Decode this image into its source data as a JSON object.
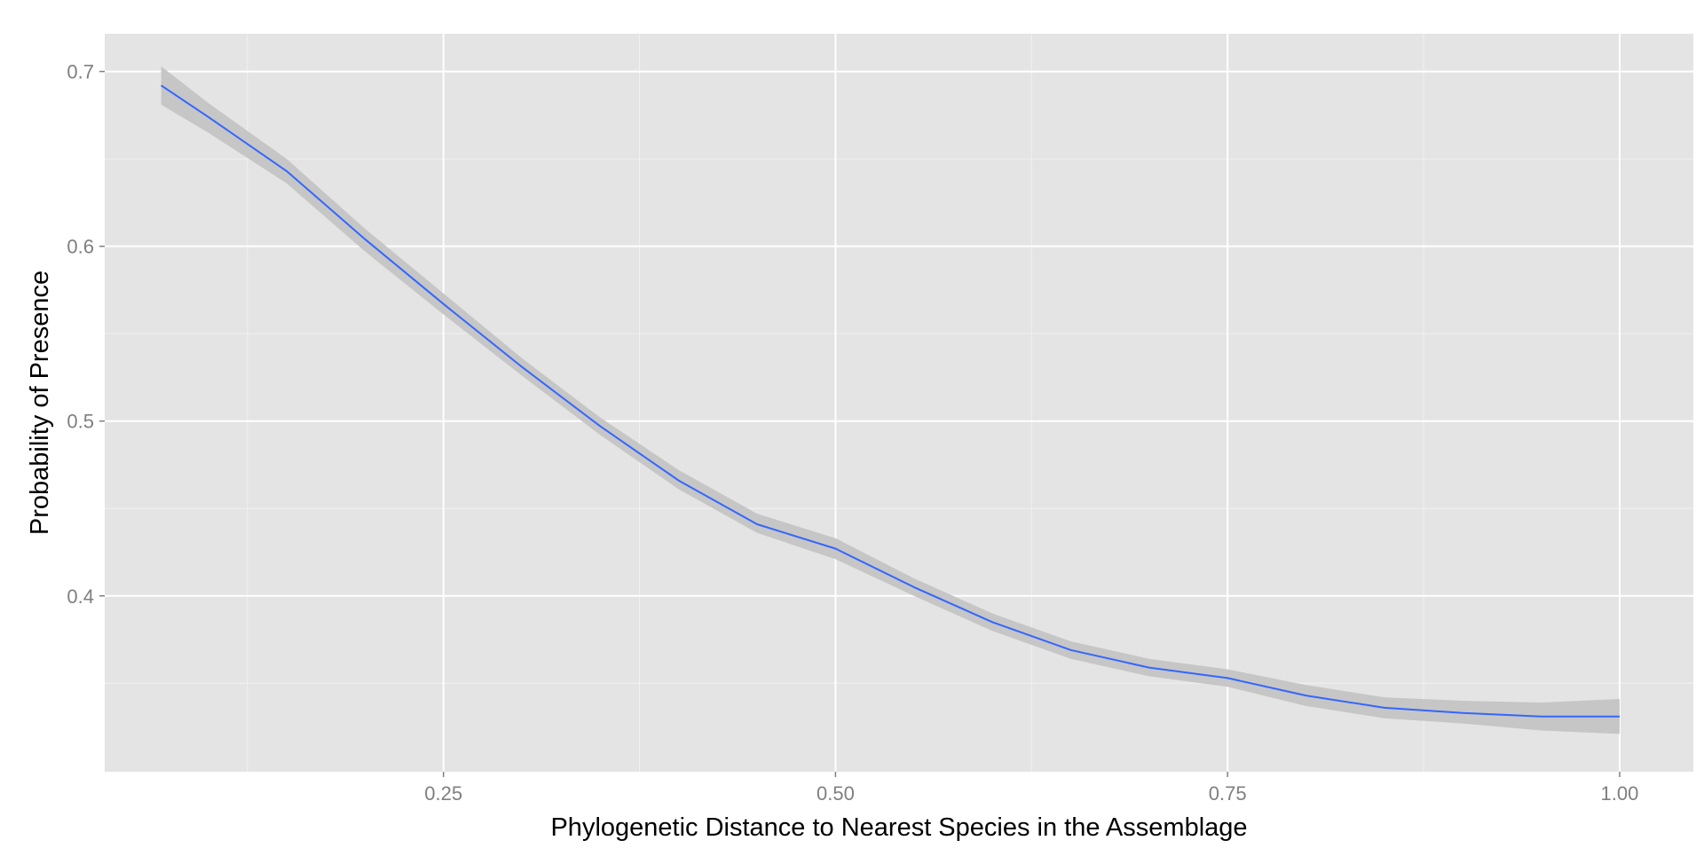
{
  "chart_data": {
    "type": "line",
    "title": "",
    "xlabel": "Phylogenetic Distance to Nearest Species in the Assemblage",
    "ylabel": "Probability of Presence",
    "xlim": [
      0.034,
      1.047
    ],
    "ylim": [
      0.2994,
      0.7216
    ],
    "x_ticks": [
      0.25,
      0.5,
      0.75,
      1.0
    ],
    "x_tick_labels": [
      "0.25",
      "0.50",
      "0.75",
      "1.00"
    ],
    "y_ticks": [
      0.4,
      0.5,
      0.6,
      0.7
    ],
    "y_tick_labels": [
      "0.4",
      "0.5",
      "0.6",
      "0.7"
    ],
    "grid": true,
    "panel_background": "#e4e4e4",
    "grid_color": "#ffffff",
    "series": [
      {
        "line_color": "#3366ff",
        "band_color": "#c6c6c6",
        "x": [
          0.07,
          0.1,
          0.15,
          0.2,
          0.25,
          0.3,
          0.35,
          0.4,
          0.45,
          0.5,
          0.55,
          0.6,
          0.65,
          0.7,
          0.75,
          0.8,
          0.85,
          0.9,
          0.95,
          1.0
        ],
        "y": [
          0.692,
          0.674,
          0.643,
          0.604,
          0.567,
          0.531,
          0.497,
          0.466,
          0.441,
          0.427,
          0.405,
          0.385,
          0.369,
          0.359,
          0.353,
          0.343,
          0.336,
          0.333,
          0.331,
          0.331
        ],
        "upper": [
          0.703,
          0.682,
          0.65,
          0.61,
          0.573,
          0.536,
          0.502,
          0.472,
          0.447,
          0.433,
          0.41,
          0.39,
          0.374,
          0.364,
          0.358,
          0.349,
          0.342,
          0.34,
          0.339,
          0.341
        ],
        "lower": [
          0.681,
          0.665,
          0.636,
          0.597,
          0.561,
          0.526,
          0.492,
          0.461,
          0.436,
          0.421,
          0.4,
          0.38,
          0.364,
          0.354,
          0.348,
          0.337,
          0.33,
          0.327,
          0.323,
          0.321
        ]
      }
    ]
  }
}
